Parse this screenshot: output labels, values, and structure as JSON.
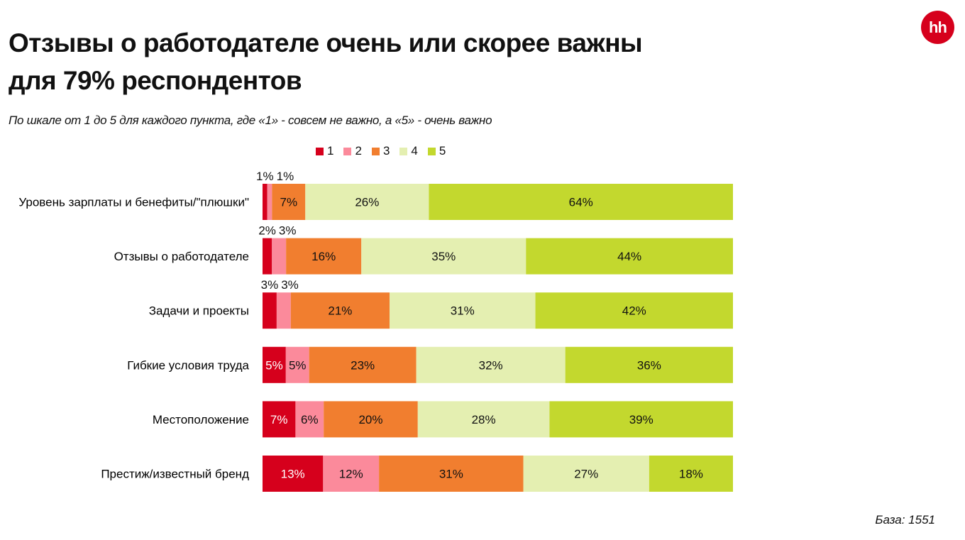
{
  "title_line1": "Отзывы о работодателе очень или скорее важны",
  "title_line2": "для 79% респондентов",
  "subtitle": "По шкале от 1 до 5 для каждого пункта, где «1» - совсем не важно, а «5» - очень важно",
  "logo_text": "hh",
  "base_note": "База: 1551",
  "chart_data": {
    "type": "bar",
    "orientation": "horizontal",
    "stacked": "100%",
    "categories": [
      "Уровень зарплаты и бенефиты/\"плюшки\"",
      "Отзывы о работодателе",
      "Задачи и проекты",
      "Гибкие условия труда",
      "Местоположение",
      "Престиж/известный бренд"
    ],
    "series": [
      {
        "name": "1",
        "color": "#d6001c",
        "label_color": "#ffffff",
        "values": [
          1,
          2,
          3,
          5,
          7,
          13
        ]
      },
      {
        "name": "2",
        "color": "#fb8a9b",
        "label_color": "#111111",
        "values": [
          1,
          3,
          3,
          5,
          6,
          12
        ]
      },
      {
        "name": "3",
        "color": "#f17e2f",
        "label_color": "#111111",
        "values": [
          7,
          16,
          21,
          23,
          20,
          31
        ]
      },
      {
        "name": "4",
        "color": "#e4efb1",
        "label_color": "#111111",
        "values": [
          26,
          35,
          31,
          32,
          28,
          27
        ]
      },
      {
        "name": "5",
        "color": "#c3d82e",
        "label_color": "#111111",
        "values": [
          64,
          44,
          42,
          36,
          39,
          18
        ]
      }
    ],
    "value_format": "%",
    "legend_position": "top",
    "grid": false
  }
}
